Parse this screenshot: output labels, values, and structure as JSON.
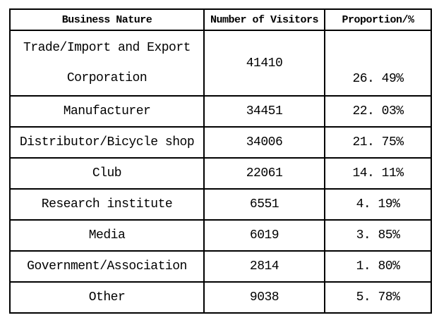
{
  "chart_data": {
    "type": "table",
    "columns": [
      "Business Nature",
      "Number of Visitors",
      "Proportion/%"
    ],
    "rows": [
      {
        "business_nature": "Trade/Import and Export Corporation",
        "number_of_visitors": 41410,
        "proportion_pct": 26.49
      },
      {
        "business_nature": "Manufacturer",
        "number_of_visitors": 34451,
        "proportion_pct": 22.03
      },
      {
        "business_nature": "Distributor/Bicycle shop",
        "number_of_visitors": 34006,
        "proportion_pct": 21.75
      },
      {
        "business_nature": "Club",
        "number_of_visitors": 22061,
        "proportion_pct": 14.11
      },
      {
        "business_nature": "Research institute",
        "number_of_visitors": 6551,
        "proportion_pct": 4.19
      },
      {
        "business_nature": "Media",
        "number_of_visitors": 6019,
        "proportion_pct": 3.85
      },
      {
        "business_nature": "Government/Association",
        "number_of_visitors": 2814,
        "proportion_pct": 1.8
      },
      {
        "business_nature": "Other",
        "number_of_visitors": 9038,
        "proportion_pct": 5.78
      }
    ]
  },
  "display": {
    "columns": [
      "Business Nature",
      "Number of Visitors",
      "Proportion/%"
    ],
    "rows": [
      {
        "name_line1": "Trade/Import and Export",
        "name_line2": "Corporation",
        "visitors": "41410",
        "proportion": "26. 49%"
      },
      {
        "name": "Manufacturer",
        "visitors": "34451",
        "proportion": "22. 03%"
      },
      {
        "name": "Distributor/Bicycle shop",
        "visitors": "34006",
        "proportion": "21. 75%"
      },
      {
        "name": "Club",
        "visitors": "22061",
        "proportion": "14. 11%"
      },
      {
        "name": "Research institute",
        "visitors": "6551",
        "proportion": "4. 19%"
      },
      {
        "name": "Media",
        "visitors": "6019",
        "proportion": "3. 85%"
      },
      {
        "name": "Government/Association",
        "visitors": "2814",
        "proportion": "1. 80%"
      },
      {
        "name": "Other",
        "visitors": "9038",
        "proportion": "5. 78%"
      }
    ],
    "colors": {
      "border": "#000000",
      "text": "#000000",
      "background": "#ffffff"
    }
  }
}
